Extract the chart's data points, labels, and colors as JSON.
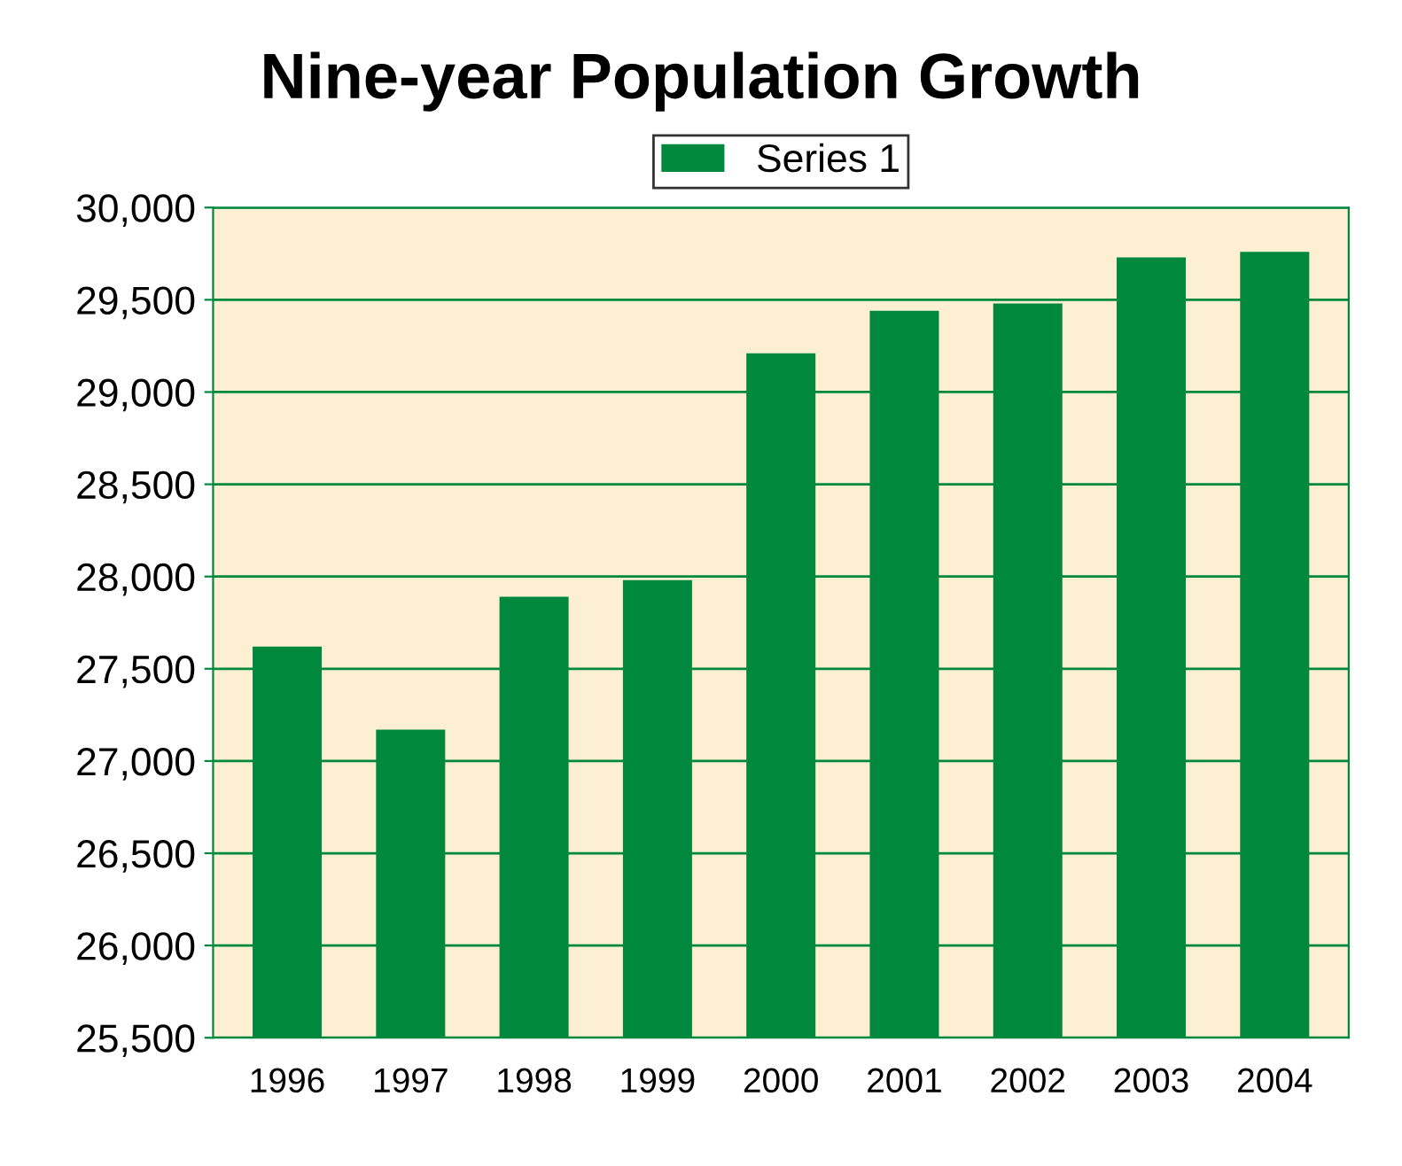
{
  "chart_data": {
    "type": "bar",
    "title": "Nine-year Population Growth",
    "categories": [
      "1996",
      "1997",
      "1998",
      "1999",
      "2000",
      "2001",
      "2002",
      "2003",
      "2004"
    ],
    "series": [
      {
        "name": "Series 1",
        "color": "#00883e",
        "values": [
          27620,
          27170,
          27890,
          27980,
          29210,
          29440,
          29480,
          29730,
          29760
        ]
      }
    ],
    "ylim": [
      25500,
      30000
    ],
    "yticks": [
      {
        "value": 25500,
        "label": "25,500"
      },
      {
        "value": 26000,
        "label": "26,000"
      },
      {
        "value": 26500,
        "label": "26,500"
      },
      {
        "value": 27000,
        "label": "27,000"
      },
      {
        "value": 27500,
        "label": "27,500"
      },
      {
        "value": 28000,
        "label": "28,000"
      },
      {
        "value": 28500,
        "label": "28,500"
      },
      {
        "value": 29000,
        "label": "29,000"
      },
      {
        "value": 29500,
        "label": "29,500"
      },
      {
        "value": 30000,
        "label": "30,000"
      }
    ],
    "grid": "y",
    "legend": "top"
  }
}
